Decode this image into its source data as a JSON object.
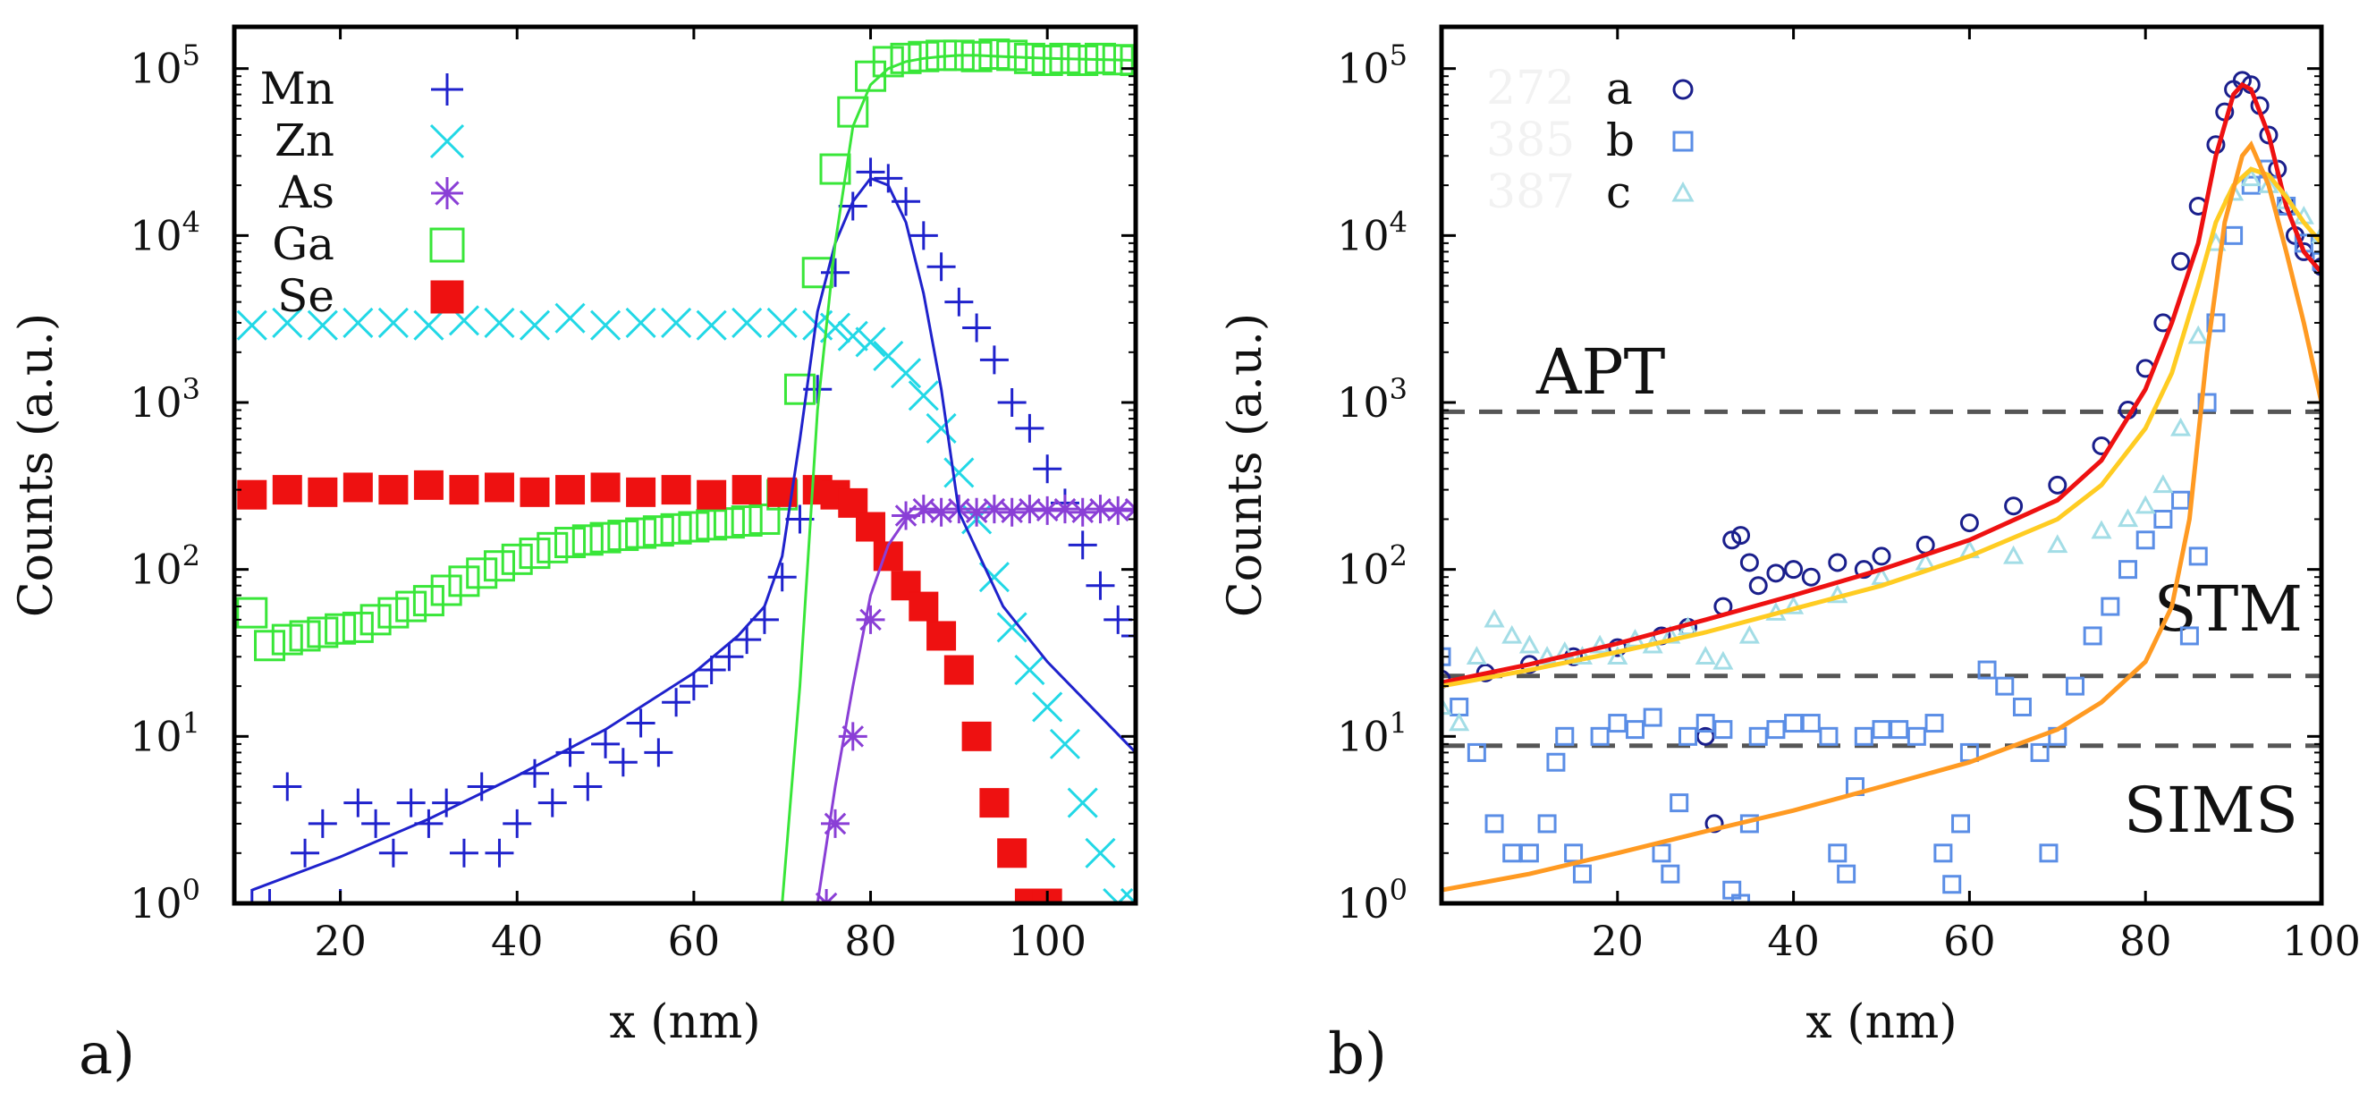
{
  "chart_data": [
    {
      "type": "scatter",
      "panel_label": "a)",
      "xlabel": "x (nm)",
      "ylabel": "Counts (a.u.)",
      "xlim": [
        8,
        110
      ],
      "ylim_log10": [
        0,
        5.25
      ],
      "xticks": [
        20,
        40,
        60,
        80,
        100
      ],
      "yticks": [
        0,
        1,
        2,
        3,
        4,
        5
      ],
      "ytick_base": "10",
      "yscale": "log",
      "legend": [
        {
          "label": "Mn",
          "color": "#1f22cc",
          "marker": "plus"
        },
        {
          "label": "Zn",
          "color": "#22d8e6",
          "marker": "cross"
        },
        {
          "label": "As",
          "color": "#8a3fd6",
          "marker": "star"
        },
        {
          "label": "Ga",
          "color": "#39e639",
          "marker": "square-open"
        },
        {
          "label": "Se",
          "color": "#ee1111",
          "marker": "square-filled"
        }
      ],
      "series": [
        {
          "name": "Mn",
          "color": "#1f22cc",
          "marker": "plus",
          "x": [
            10,
            12,
            14,
            16,
            18,
            20,
            22,
            24,
            26,
            28,
            30,
            32,
            34,
            36,
            38,
            40,
            42,
            44,
            46,
            48,
            50,
            52,
            54,
            56,
            58,
            60,
            62,
            64,
            66,
            68,
            70,
            72,
            74,
            76,
            78,
            80,
            82,
            84,
            86,
            88,
            90,
            92,
            94,
            96,
            98,
            100,
            102,
            104,
            106,
            108,
            110
          ],
          "y": [
            1,
            1,
            5,
            2,
            3,
            1,
            4,
            3,
            2,
            4,
            3,
            4,
            2,
            5,
            2,
            3,
            6,
            4,
            8,
            5,
            9,
            7,
            12,
            8,
            16,
            20,
            25,
            30,
            38,
            50,
            90,
            200,
            1200,
            6000,
            15000,
            24000,
            22000,
            16000,
            10000,
            6500,
            4000,
            2800,
            1800,
            1000,
            700,
            400,
            250,
            140,
            80,
            50,
            40
          ]
        },
        {
          "name": "Zn",
          "color": "#22d8e6",
          "marker": "cross",
          "x": [
            10,
            14,
            18,
            22,
            26,
            30,
            34,
            38,
            42,
            46,
            50,
            54,
            58,
            62,
            66,
            70,
            74,
            76,
            78,
            80,
            82,
            84,
            86,
            88,
            90,
            92,
            94,
            96,
            98,
            100,
            102,
            104,
            106,
            108,
            110
          ],
          "y": [
            2900,
            3000,
            2900,
            3000,
            3000,
            2900,
            3100,
            3000,
            2900,
            3200,
            2900,
            3000,
            3000,
            2900,
            3000,
            3000,
            2900,
            2800,
            2500,
            2300,
            1900,
            1500,
            1100,
            700,
            380,
            200,
            90,
            45,
            25,
            15,
            9,
            4,
            2,
            1,
            1
          ]
        },
        {
          "name": "As",
          "color": "#8a3fd6",
          "marker": "star",
          "x": [
            75,
            76,
            78,
            80,
            82,
            84,
            86,
            88,
            90,
            92,
            94,
            96,
            98,
            100,
            102,
            104,
            106,
            108,
            110
          ],
          "y": [
            1,
            3,
            10,
            50,
            120,
            210,
            230,
            220,
            230,
            220,
            230,
            220,
            230,
            225,
            230,
            220,
            230,
            225,
            230
          ]
        },
        {
          "name": "Ga",
          "color": "#39e639",
          "marker": "square-open",
          "x": [
            10,
            12,
            14,
            16,
            18,
            20,
            22,
            24,
            26,
            28,
            30,
            32,
            34,
            36,
            38,
            40,
            42,
            44,
            46,
            48,
            50,
            52,
            54,
            56,
            58,
            60,
            62,
            64,
            66,
            68,
            70,
            72,
            74,
            76,
            78,
            80,
            82,
            84,
            86,
            88,
            90,
            92,
            94,
            96,
            98,
            100,
            102,
            104,
            106,
            108,
            110
          ],
          "y": [
            55,
            35,
            38,
            40,
            42,
            44,
            45,
            50,
            55,
            60,
            65,
            75,
            85,
            95,
            105,
            115,
            125,
            135,
            145,
            150,
            155,
            160,
            165,
            170,
            175,
            180,
            185,
            190,
            195,
            200,
            280,
            1200,
            6000,
            25000,
            55000,
            90000,
            110000,
            115000,
            118000,
            120000,
            120000,
            118000,
            122000,
            120000,
            115000,
            112000,
            115000,
            112000,
            115000,
            113000,
            112000
          ]
        },
        {
          "name": "Se",
          "color": "#ee1111",
          "marker": "square-filled",
          "x": [
            10,
            14,
            18,
            22,
            26,
            30,
            34,
            38,
            42,
            46,
            50,
            54,
            58,
            62,
            66,
            70,
            74,
            76,
            78,
            80,
            82,
            84,
            86,
            88,
            90,
            92,
            94,
            96,
            98,
            100
          ],
          "y": [
            280,
            300,
            290,
            310,
            300,
            320,
            300,
            310,
            290,
            300,
            310,
            290,
            300,
            280,
            300,
            290,
            300,
            280,
            250,
            180,
            120,
            80,
            60,
            40,
            25,
            10,
            4,
            2,
            1,
            1
          ]
        }
      ],
      "fit_lines": [
        {
          "name": "Mn fit",
          "color": "#1f22cc",
          "x": [
            10,
            20,
            30,
            40,
            50,
            60,
            65,
            68,
            70,
            72,
            74,
            76,
            78,
            80,
            82,
            84,
            86,
            88,
            90,
            95,
            100,
            110
          ],
          "y": [
            1.2,
            1.9,
            3.2,
            5.8,
            11,
            24,
            40,
            60,
            120,
            600,
            3500,
            9000,
            16000,
            22000,
            20000,
            12000,
            4500,
            1200,
            220,
            60,
            28,
            8
          ]
        },
        {
          "name": "Ga fit",
          "color": "#39e639",
          "x": [
            70,
            72,
            74,
            76,
            78,
            80,
            82,
            84,
            86,
            88,
            90,
            92,
            95,
            100,
            110
          ],
          "y": [
            1,
            20,
            900,
            9000,
            45000,
            80000,
            100000,
            110000,
            115000,
            118000,
            120000,
            120000,
            118000,
            115000,
            112000
          ]
        },
        {
          "name": "As fit",
          "color": "#8a3fd6",
          "x": [
            74,
            76,
            78,
            80,
            82,
            84,
            86,
            88
          ],
          "y": [
            1,
            5,
            20,
            70,
            140,
            200,
            220,
            225
          ]
        }
      ]
    },
    {
      "type": "scatter",
      "panel_label": "b)",
      "xlabel": "x (nm)",
      "ylabel": "Counts (a.u.)",
      "xlim": [
        0,
        100
      ],
      "ylim_log10": [
        0,
        5.25
      ],
      "xticks": [
        20,
        40,
        60,
        80,
        100
      ],
      "yticks": [
        0,
        1,
        2,
        3,
        4,
        5
      ],
      "ytick_base": "10",
      "yscale": "log",
      "legend": [
        {
          "label": "a",
          "color": "#1a1f8c",
          "marker": "circle-open",
          "faint_number": "272"
        },
        {
          "label": "b",
          "color": "#5b8ee6",
          "marker": "square-open",
          "faint_number": "385"
        },
        {
          "label": "c",
          "color": "#a3dde6",
          "marker": "triangle-open",
          "faint_number": "387"
        }
      ],
      "thresholds": [
        {
          "label": "APT",
          "value": 880
        },
        {
          "label": "STM",
          "value": 23
        },
        {
          "label": "SIMS",
          "value": 8.8
        }
      ],
      "series": [
        {
          "name": "a",
          "color": "#1a1f8c",
          "marker": "circle-open",
          "x": [
            0,
            5,
            10,
            15,
            20,
            25,
            28,
            30,
            31,
            32,
            33,
            34,
            35,
            36,
            38,
            40,
            42,
            45,
            48,
            50,
            55,
            60,
            65,
            70,
            75,
            78,
            80,
            82,
            84,
            86,
            88,
            89,
            90,
            91,
            92,
            93,
            94,
            95,
            96,
            97,
            98,
            100
          ],
          "y": [
            22,
            24,
            27,
            30,
            34,
            40,
            45,
            10,
            3,
            60,
            150,
            160,
            110,
            80,
            95,
            100,
            90,
            110,
            100,
            120,
            140,
            190,
            240,
            320,
            550,
            900,
            1600,
            3000,
            7000,
            15000,
            35000,
            55000,
            75000,
            85000,
            80000,
            60000,
            40000,
            25000,
            15000,
            10000,
            8000,
            6500
          ]
        },
        {
          "name": "b",
          "color": "#5b8ee6",
          "marker": "square-open",
          "x": [
            0,
            2,
            4,
            6,
            8,
            10,
            12,
            13,
            14,
            15,
            16,
            18,
            20,
            22,
            24,
            25,
            26,
            27,
            28,
            30,
            32,
            33,
            34,
            35,
            36,
            38,
            40,
            42,
            44,
            45,
            46,
            47,
            48,
            50,
            52,
            54,
            56,
            57,
            58,
            59,
            60,
            62,
            64,
            66,
            68,
            69,
            70,
            72,
            74,
            76,
            78,
            80,
            82,
            84,
            85,
            86,
            87,
            88,
            90,
            92,
            94,
            96,
            98,
            100
          ],
          "y": [
            30,
            15,
            8,
            3,
            2,
            2,
            3,
            7,
            10,
            2,
            1.5,
            10,
            12,
            11,
            13,
            2,
            1.5,
            4,
            10,
            12,
            11,
            1.2,
            1,
            3,
            10,
            11,
            12,
            12,
            10,
            2,
            1.5,
            5,
            10,
            11,
            11,
            10,
            12,
            2,
            1.3,
            3,
            8,
            25,
            20,
            15,
            8,
            2,
            10,
            20,
            40,
            60,
            100,
            150,
            200,
            260,
            40,
            120,
            1000,
            3000,
            10000,
            20000,
            25000,
            15000,
            9000,
            7000
          ]
        },
        {
          "name": "c",
          "color": "#a3dde6",
          "marker": "triangle-open",
          "x": [
            0,
            2,
            4,
            6,
            8,
            10,
            12,
            14,
            16,
            18,
            20,
            22,
            24,
            26,
            28,
            30,
            32,
            35,
            38,
            40,
            45,
            50,
            55,
            60,
            65,
            70,
            75,
            78,
            80,
            82,
            84,
            86,
            88,
            90,
            92,
            94,
            96,
            98,
            100
          ],
          "y": [
            15,
            12,
            30,
            50,
            40,
            35,
            30,
            32,
            30,
            35,
            30,
            38,
            35,
            40,
            45,
            30,
            28,
            40,
            55,
            60,
            70,
            90,
            110,
            130,
            120,
            140,
            170,
            200,
            240,
            320,
            700,
            2500,
            9000,
            18000,
            22000,
            20000,
            16000,
            13000,
            10000
          ]
        }
      ],
      "fit_lines": [
        {
          "name": "fit a",
          "color": "#ee1111",
          "x": [
            0,
            10,
            20,
            30,
            40,
            50,
            60,
            70,
            75,
            80,
            83,
            86,
            88,
            90,
            91,
            92,
            94,
            96,
            98,
            100
          ],
          "y": [
            21,
            27,
            36,
            50,
            70,
            100,
            150,
            260,
            450,
            1200,
            3000,
            9000,
            30000,
            70000,
            80000,
            75000,
            40000,
            15000,
            8000,
            6000
          ]
        },
        {
          "name": "fit c",
          "color": "#ffcc22",
          "x": [
            0,
            10,
            20,
            30,
            40,
            50,
            60,
            70,
            75,
            80,
            83,
            86,
            88,
            90,
            92,
            94,
            96,
            98,
            100
          ],
          "y": [
            20,
            25,
            32,
            42,
            58,
            80,
            120,
            200,
            320,
            700,
            1500,
            5000,
            12000,
            20000,
            25000,
            23000,
            17000,
            12000,
            9000
          ]
        },
        {
          "name": "fit b",
          "color": "#ff9a22",
          "x": [
            0,
            10,
            20,
            30,
            40,
            50,
            60,
            70,
            75,
            80,
            83,
            85,
            87,
            89,
            91,
            92,
            94,
            96,
            98,
            100
          ],
          "y": [
            1.2,
            1.5,
            2,
            2.7,
            3.6,
            5,
            7,
            11,
            16,
            28,
            60,
            200,
            2000,
            12000,
            30000,
            35000,
            20000,
            8000,
            3000,
            1000
          ]
        }
      ]
    }
  ]
}
